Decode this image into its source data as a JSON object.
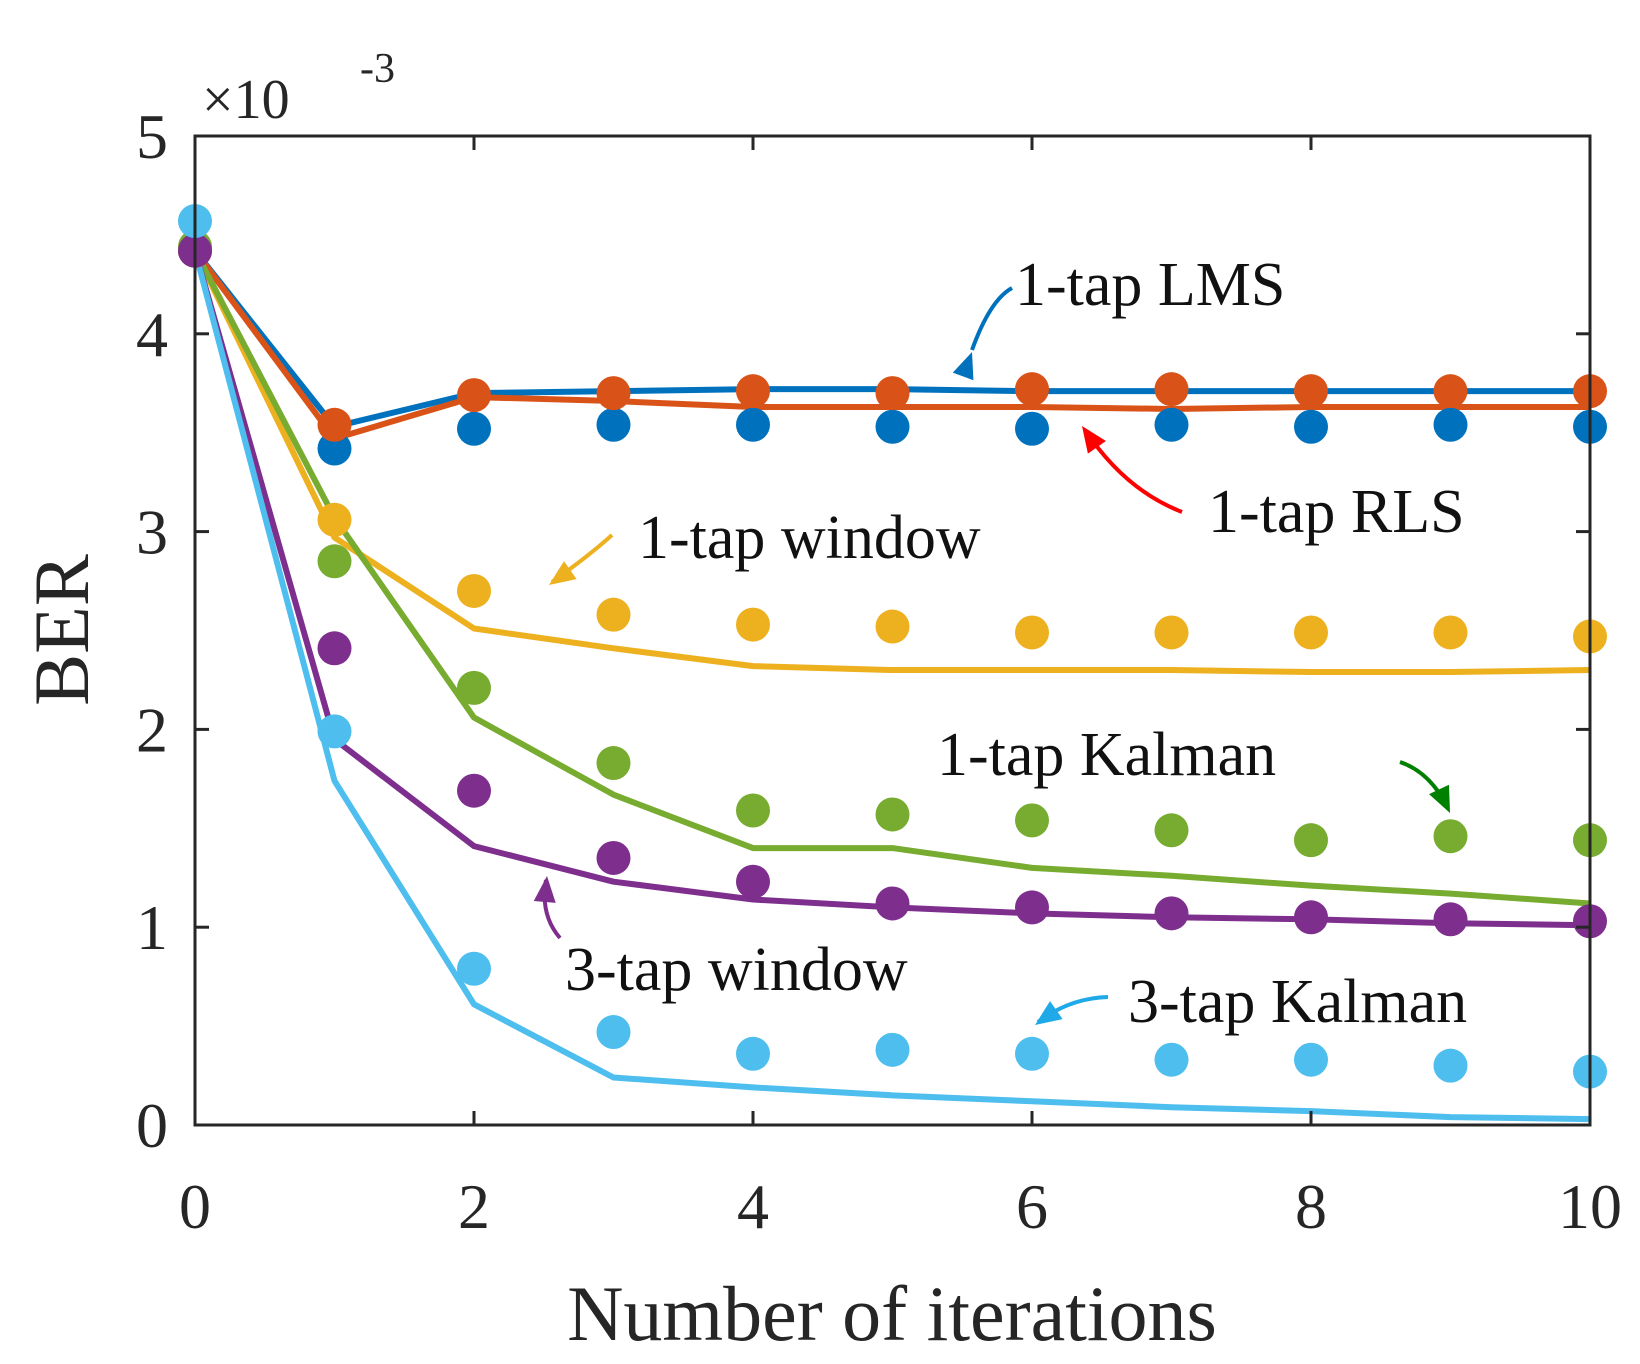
{
  "chart_data": {
    "type": "line",
    "title": "",
    "xlabel": "Number of iterations",
    "ylabel": "BER",
    "y_multiplier": "×10",
    "y_multiplier_exponent": "-3",
    "xlim": [
      0,
      10
    ],
    "ylim": [
      0,
      5
    ],
    "xticks": [
      0,
      2,
      4,
      6,
      8,
      10
    ],
    "yticks": [
      0,
      1,
      2,
      3,
      4,
      5
    ],
    "grid": false,
    "x": [
      0,
      1,
      2,
      3,
      4,
      5,
      6,
      7,
      8,
      9,
      10
    ],
    "series": [
      {
        "name": "1-tap LMS",
        "color": "#0072BD",
        "line": [
          4.42,
          3.53,
          3.7,
          3.71,
          3.72,
          3.72,
          3.71,
          3.71,
          3.71,
          3.71,
          3.71
        ],
        "markers": [
          4.42,
          3.42,
          3.52,
          3.54,
          3.54,
          3.53,
          3.52,
          3.54,
          3.53,
          3.54,
          3.53
        ]
      },
      {
        "name": "1-tap RLS",
        "color": "#D95319",
        "line": [
          4.42,
          3.47,
          3.68,
          3.66,
          3.63,
          3.63,
          3.63,
          3.62,
          3.63,
          3.63,
          3.63
        ],
        "markers": [
          4.42,
          3.54,
          3.69,
          3.7,
          3.71,
          3.7,
          3.72,
          3.72,
          3.71,
          3.71,
          3.71
        ]
      },
      {
        "name": "1-tap window",
        "color": "#EDB120",
        "line": [
          4.42,
          2.97,
          2.51,
          2.41,
          2.32,
          2.3,
          2.3,
          2.3,
          2.29,
          2.29,
          2.3
        ],
        "markers": [
          4.42,
          3.06,
          2.7,
          2.58,
          2.53,
          2.52,
          2.49,
          2.49,
          2.49,
          2.49,
          2.47
        ]
      },
      {
        "name": "1-tap Kalman",
        "color": "#77AC30",
        "line": [
          4.42,
          3.07,
          2.06,
          1.67,
          1.4,
          1.4,
          1.3,
          1.26,
          1.21,
          1.17,
          1.12
        ],
        "markers": [
          4.44,
          2.85,
          2.21,
          1.83,
          1.59,
          1.57,
          1.54,
          1.49,
          1.44,
          1.46,
          1.44
        ]
      },
      {
        "name": "3-tap window",
        "color": "#7E2F8E",
        "line": [
          4.42,
          1.95,
          1.41,
          1.23,
          1.14,
          1.1,
          1.07,
          1.05,
          1.04,
          1.02,
          1.01
        ],
        "markers": [
          4.42,
          2.41,
          1.69,
          1.35,
          1.23,
          1.12,
          1.1,
          1.07,
          1.05,
          1.04,
          1.03
        ]
      },
      {
        "name": "3-tap Kalman",
        "color": "#4DBEEE",
        "line": [
          4.42,
          1.74,
          0.61,
          0.24,
          0.19,
          0.15,
          0.12,
          0.09,
          0.07,
          0.04,
          0.03
        ],
        "markers": [
          4.57,
          1.99,
          0.79,
          0.47,
          0.36,
          0.38,
          0.36,
          0.33,
          0.33,
          0.3,
          0.27
        ]
      }
    ],
    "annotations": [
      {
        "text": "1-tap LMS",
        "series": 0,
        "arrow_color": "#0072BD"
      },
      {
        "text": "1-tap RLS",
        "series": 1,
        "arrow_color": "#FF0000"
      },
      {
        "text": "1-tap window",
        "series": 2,
        "arrow_color": "#EDB120"
      },
      {
        "text": "1-tap Kalman",
        "series": 3,
        "arrow_color": "#008000"
      },
      {
        "text": "3-tap window",
        "series": 4,
        "arrow_color": "#7E2F8E"
      },
      {
        "text": "3-tap Kalman",
        "series": 5,
        "arrow_color": "#1FA9E8"
      }
    ]
  }
}
